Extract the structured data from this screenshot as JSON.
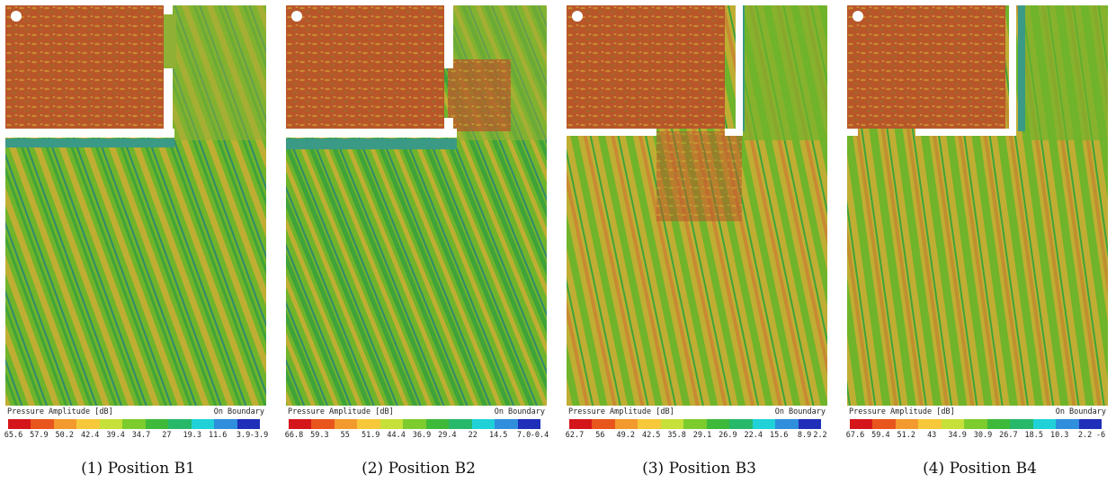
{
  "colors": {
    "scale": [
      "#d4161b",
      "#e8561d",
      "#f39a2e",
      "#f6c93a",
      "#c8e03a",
      "#7ccc2e",
      "#3fb93a",
      "#27b86a",
      "#20d2d8",
      "#2f8fdc",
      "#1f2fb8"
    ],
    "red_brown": "#b8562a",
    "olive": "#bfae33",
    "green": "#6fb42b",
    "teal": "#3a9a86",
    "wall": "#ffffff"
  },
  "panels": [
    {
      "caption": "(1) Position B1",
      "legend_title": "Pressure Amplitude [dB]",
      "legend_right": "On Boundary",
      "ticks": [
        "65.6",
        "57.9",
        "50.2",
        "42.4",
        "39.4",
        "34.7",
        "27",
        "19.3",
        "11.6",
        "3.9",
        "-3.9"
      ]
    },
    {
      "caption": "(2) Position B2",
      "legend_title": "Pressure Amplitude [dB]",
      "legend_right": "On Boundary",
      "ticks": [
        "66.8",
        "59.3",
        "55",
        "51.9",
        "44.4",
        "36.9",
        "29.4",
        "22",
        "14.5",
        "7.0",
        "-0.4"
      ]
    },
    {
      "caption": "(3) Position B3",
      "legend_title": "Pressure Amplitude [dB]",
      "legend_right": "On Boundary",
      "ticks": [
        "62.7",
        "56",
        "49.2",
        "42.5",
        "35.8",
        "29.1",
        "26.9",
        "22.4",
        "15.6",
        "8.9",
        "2.2"
      ]
    },
    {
      "caption": "(4) Position B4",
      "legend_title": "Pressure Amplitude [dB]",
      "legend_right": "On Boundary",
      "ticks": [
        "67.6",
        "59.4",
        "51.2",
        "43",
        "34.9",
        "30.9",
        "26.7",
        "18.5",
        "10.3",
        "2.2",
        "-6"
      ]
    }
  ]
}
